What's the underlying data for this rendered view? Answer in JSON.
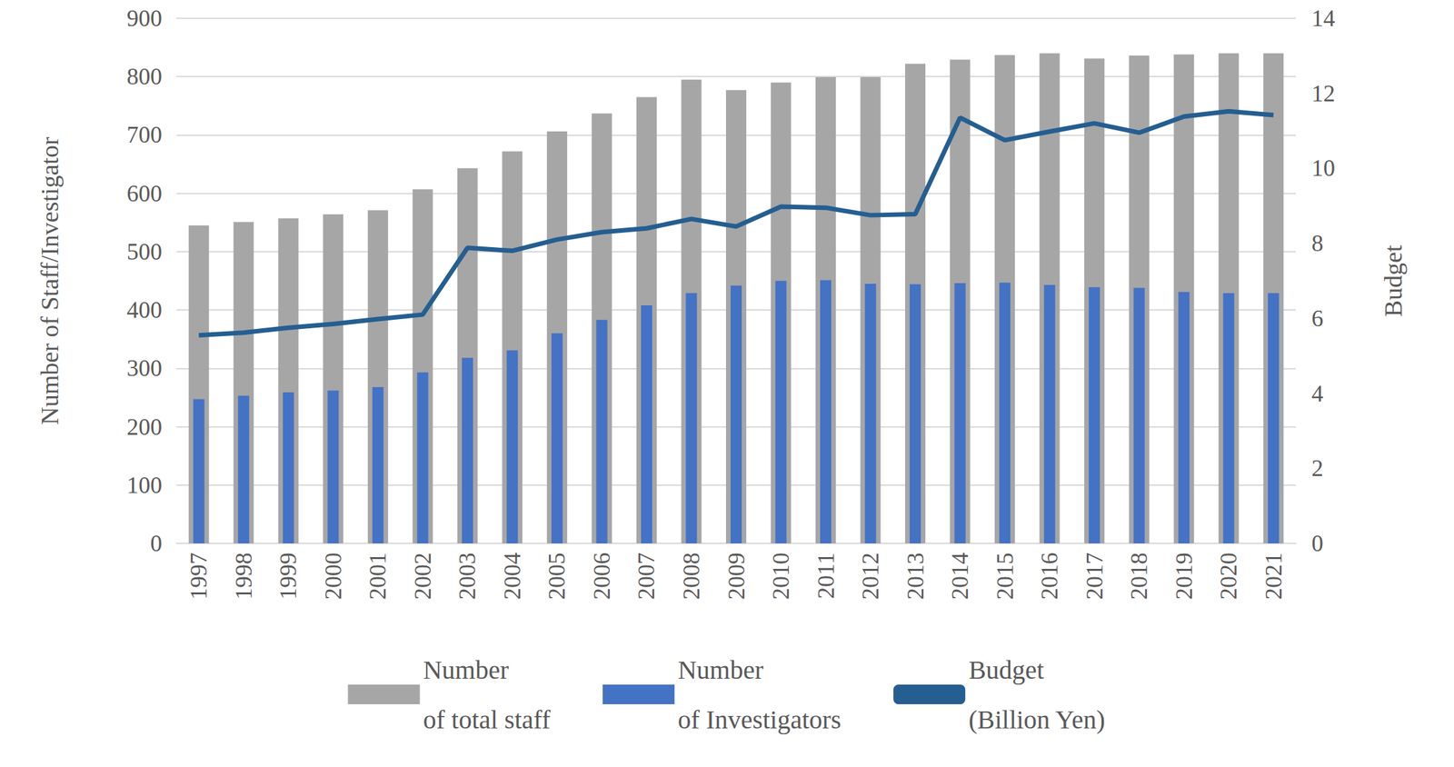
{
  "chart_data": {
    "type": "bar",
    "categories": [
      "1997",
      "1998",
      "1999",
      "2000",
      "2001",
      "2002",
      "2003",
      "2004",
      "2005",
      "2006",
      "2007",
      "2008",
      "2009",
      "2010",
      "2011",
      "2012",
      "2013",
      "2014",
      "2015",
      "2016",
      "2017",
      "2018",
      "2019",
      "2020",
      "2021"
    ],
    "series": [
      {
        "name": "Number\nof total staff",
        "type": "bar",
        "color": "#a6a6a6",
        "values": [
          545,
          551,
          557,
          564,
          571,
          607,
          643,
          672,
          706,
          737,
          765,
          795,
          777,
          790,
          799,
          799,
          822,
          829,
          837,
          840,
          831,
          836,
          838,
          840,
          840
        ]
      },
      {
        "name": "Number\nof Investigators",
        "type": "bar",
        "color": "#4472c4",
        "values": [
          247,
          253,
          259,
          262,
          268,
          293,
          318,
          331,
          360,
          383,
          408,
          429,
          442,
          450,
          451,
          445,
          444,
          446,
          447,
          443,
          439,
          438,
          431,
          429,
          429
        ]
      },
      {
        "name": "Budget\n(Billion Yen)",
        "type": "line",
        "axis": "y2",
        "color": "#255e91",
        "line_style": "solid",
        "marker": "none",
        "values": [
          5.55,
          5.62,
          5.75,
          5.85,
          5.98,
          6.1,
          7.88,
          7.8,
          8.1,
          8.3,
          8.4,
          8.65,
          8.45,
          8.98,
          8.95,
          8.75,
          8.78,
          11.35,
          10.75,
          10.98,
          11.2,
          10.95,
          11.38,
          11.52,
          11.42
        ]
      }
    ],
    "y_label": "Number of Staff/Investigator",
    "y2_label": "Budget",
    "ylim": [
      0,
      900
    ],
    "yticks": [
      0,
      100,
      200,
      300,
      400,
      500,
      600,
      700,
      800,
      900
    ],
    "y2lim": [
      0,
      14
    ],
    "y2ticks": [
      0,
      2,
      4,
      6,
      8,
      10,
      12,
      14
    ],
    "grid": true,
    "legend": "bottom"
  }
}
